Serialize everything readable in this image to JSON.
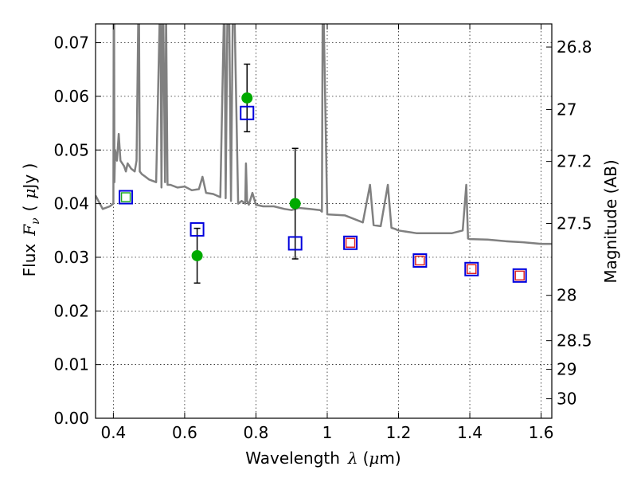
{
  "chart_data": {
    "type": "scatter",
    "title": "",
    "xlabel": "Wavelength",
    "xlabel_symbol": "λ",
    "xlabel_unit_open": "(",
    "xlabel_unit_mu": "μ",
    "xlabel_unit_rest": "m)",
    "ylabel": "Flux",
    "ylabel_symbol": "F",
    "ylabel_symbol_sub": "ν",
    "ylabel_unit_open": "(",
    "ylabel_unit_mu": "μ",
    "ylabel_unit_rest": "Jy )",
    "y2label": "Magnitude (AB)",
    "xlim": [
      0.35,
      1.63
    ],
    "ylim": [
      0.0,
      0.0735
    ],
    "grid": true,
    "x_ticks": [
      {
        "v": 0.4,
        "label": "0.4"
      },
      {
        "v": 0.6,
        "label": "0.6"
      },
      {
        "v": 0.8,
        "label": "0.8"
      },
      {
        "v": 1.0,
        "label": "1"
      },
      {
        "v": 1.2,
        "label": "1.2"
      },
      {
        "v": 1.4,
        "label": "1.4"
      },
      {
        "v": 1.6,
        "label": "1.6"
      }
    ],
    "y_ticks": [
      {
        "v": 0.0,
        "label": "0.00"
      },
      {
        "v": 0.01,
        "label": "0.01"
      },
      {
        "v": 0.02,
        "label": "0.02"
      },
      {
        "v": 0.03,
        "label": "0.03"
      },
      {
        "v": 0.04,
        "label": "0.04"
      },
      {
        "v": 0.05,
        "label": "0.05"
      },
      {
        "v": 0.06,
        "label": "0.06"
      },
      {
        "v": 0.07,
        "label": "0.07"
      }
    ],
    "y2_ticks": [
      {
        "mag": 26.8,
        "label": "26.8"
      },
      {
        "mag": 27,
        "label": "27"
      },
      {
        "mag": 27.2,
        "label": "27.2"
      },
      {
        "mag": 27.5,
        "label": "27.5"
      },
      {
        "mag": 28,
        "label": "28"
      },
      {
        "mag": 28.5,
        "label": "28.5"
      },
      {
        "mag": 29,
        "label": "29"
      },
      {
        "mag": 30,
        "label": "30"
      }
    ],
    "series": [
      {
        "role": "template-spectrum",
        "color": "#808080",
        "x": [
          0.35,
          0.37,
          0.39,
          0.4,
          0.401,
          0.402,
          0.403,
          0.405,
          0.41,
          0.415,
          0.42,
          0.43,
          0.435,
          0.44,
          0.45,
          0.46,
          0.465,
          0.47,
          0.472,
          0.474,
          0.48,
          0.49,
          0.5,
          0.52,
          0.53,
          0.532,
          0.535,
          0.538,
          0.54,
          0.545,
          0.548,
          0.552,
          0.56,
          0.58,
          0.6,
          0.62,
          0.64,
          0.65,
          0.66,
          0.68,
          0.7,
          0.71,
          0.712,
          0.715,
          0.72,
          0.725,
          0.73,
          0.735,
          0.74,
          0.75,
          0.76,
          0.77,
          0.772,
          0.775,
          0.78,
          0.79,
          0.8,
          0.82,
          0.85,
          0.88,
          0.9,
          0.92,
          0.95,
          0.98,
          0.985,
          0.987,
          0.99,
          1.0,
          1.05,
          1.1,
          1.12,
          1.13,
          1.15,
          1.17,
          1.18,
          1.19,
          1.2,
          1.25,
          1.3,
          1.35,
          1.38,
          1.39,
          1.395,
          1.4,
          1.45,
          1.5,
          1.55,
          1.6,
          1.63
        ],
        "y": [
          0.0415,
          0.039,
          0.0395,
          0.04,
          0.075,
          0.075,
          0.044,
          0.05,
          0.048,
          0.053,
          0.048,
          0.047,
          0.046,
          0.0475,
          0.0465,
          0.046,
          0.048,
          0.075,
          0.075,
          0.046,
          0.0455,
          0.045,
          0.0445,
          0.044,
          0.075,
          0.075,
          0.043,
          0.075,
          0.075,
          0.044,
          0.075,
          0.0435,
          0.0435,
          0.043,
          0.0432,
          0.0425,
          0.0427,
          0.045,
          0.042,
          0.0418,
          0.0412,
          0.075,
          0.075,
          0.041,
          0.075,
          0.075,
          0.0405,
          0.075,
          0.075,
          0.04,
          0.0405,
          0.04,
          0.0475,
          0.0405,
          0.0398,
          0.042,
          0.0398,
          0.0395,
          0.0395,
          0.039,
          0.0388,
          0.0392,
          0.039,
          0.0388,
          0.0385,
          0.075,
          0.075,
          0.038,
          0.0378,
          0.0365,
          0.0435,
          0.036,
          0.0358,
          0.0435,
          0.0355,
          0.0353,
          0.035,
          0.0345,
          0.0345,
          0.0345,
          0.035,
          0.0435,
          0.0335,
          0.0334,
          0.0333,
          0.033,
          0.0328,
          0.0325,
          0.0325
        ]
      },
      {
        "role": "observed",
        "color": "#00aa00",
        "points": [
          {
            "x": 0.635,
            "y": 0.0303,
            "err": 0.0051
          },
          {
            "x": 0.775,
            "y": 0.0597,
            "err": 0.0063
          },
          {
            "x": 0.91,
            "y": 0.04,
            "err": 0.0103
          }
        ]
      },
      {
        "role": "model-blue",
        "color": "#0000dd",
        "points": [
          {
            "x": 0.435,
            "y": 0.0412
          },
          {
            "x": 0.635,
            "y": 0.0352
          },
          {
            "x": 0.775,
            "y": 0.0569
          },
          {
            "x": 0.91,
            "y": 0.0326
          },
          {
            "x": 1.065,
            "y": 0.0327
          },
          {
            "x": 1.26,
            "y": 0.0294
          },
          {
            "x": 1.405,
            "y": 0.0278
          },
          {
            "x": 1.54,
            "y": 0.0266
          }
        ]
      },
      {
        "role": "model-green",
        "color": "#22aa22",
        "points": [
          {
            "x": 0.435,
            "y": 0.0412
          }
        ]
      },
      {
        "role": "model-red",
        "color": "#dd2222",
        "points": [
          {
            "x": 1.065,
            "y": 0.0327
          },
          {
            "x": 1.26,
            "y": 0.0294
          },
          {
            "x": 1.405,
            "y": 0.0278
          },
          {
            "x": 1.54,
            "y": 0.0266
          }
        ]
      }
    ]
  }
}
